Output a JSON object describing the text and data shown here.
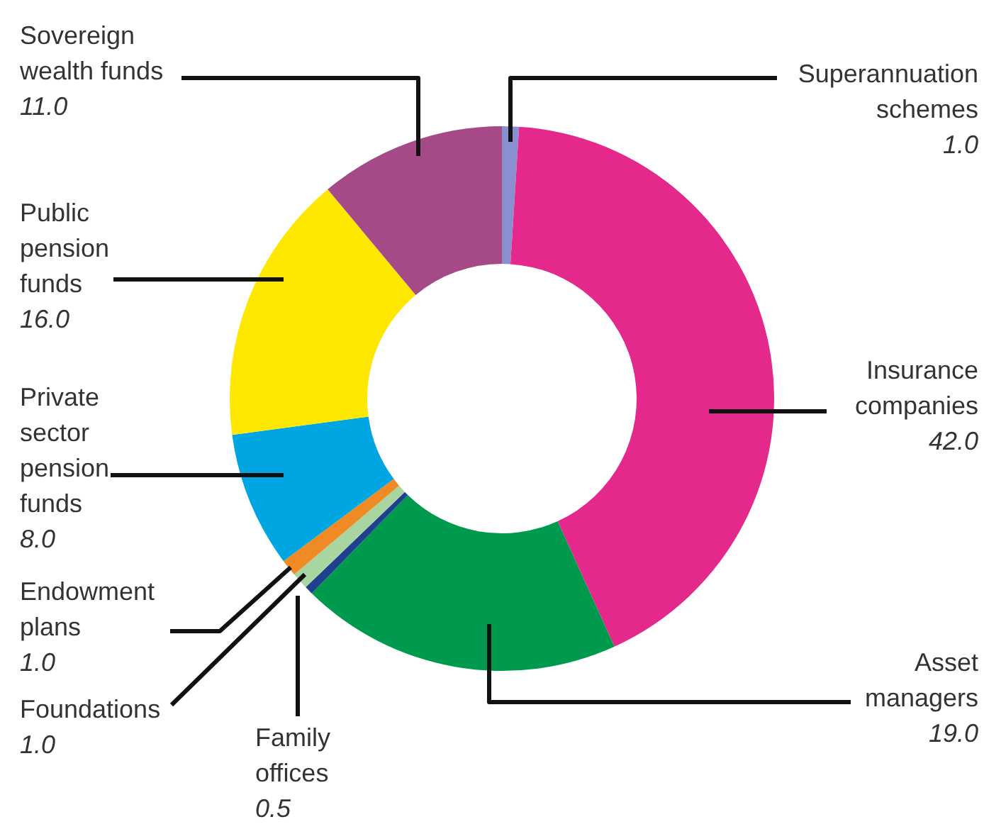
{
  "chart_data": {
    "type": "donut",
    "categories": [
      "Superannuation\nschemes",
      "Insurance\ncompanies",
      "Asset\nmanagers",
      "Family\noffices",
      "Foundations",
      "Endowment\nplans",
      "Private\nsector\npension\nfunds",
      "Public\npension\nfunds",
      "Sovereign\nwealth funds"
    ],
    "values": [
      1.0,
      42.0,
      19.0,
      0.5,
      1.0,
      1.0,
      8.0,
      16.0,
      11.0
    ],
    "colors": [
      "#8a8fd0",
      "#e5288b",
      "#009a4e",
      "#1f3f8f",
      "#a8d5a0",
      "#f08a24",
      "#00a6e2",
      "#ffe800",
      "#a54a87"
    ],
    "value_labels": [
      "1.0",
      "42.0",
      "19.0",
      "0.5",
      "1.0",
      "1.0",
      "8.0",
      "16.0",
      "11.0"
    ]
  }
}
